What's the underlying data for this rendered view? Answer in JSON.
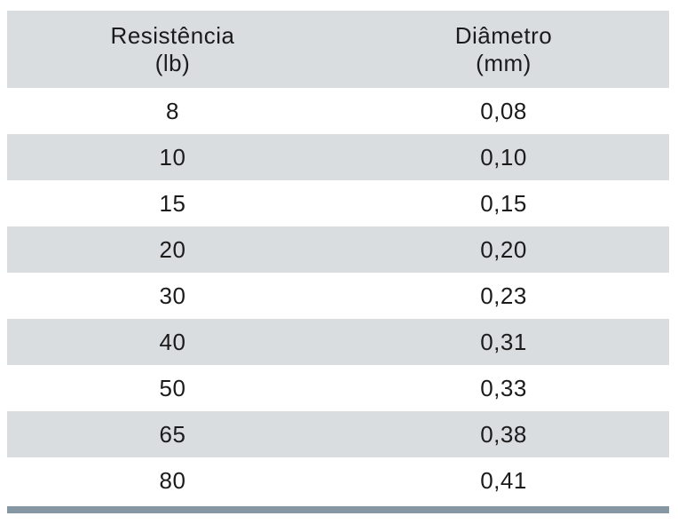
{
  "colors": {
    "stripe_bg": "#d9dde0",
    "header_bg": "#d9dde0",
    "bottom_bar": "#8597a3",
    "text": "#1b1b1b",
    "page_bg": "#ffffff"
  },
  "chart_data": {
    "type": "table",
    "title": "",
    "columns": [
      {
        "label": "Resistência",
        "unit": "(lb)"
      },
      {
        "label": "Diâmetro",
        "unit": "(mm)"
      }
    ],
    "rows": [
      [
        "8",
        "0,08"
      ],
      [
        "10",
        "0,10"
      ],
      [
        "15",
        "0,15"
      ],
      [
        "20",
        "0,20"
      ],
      [
        "30",
        "0,23"
      ],
      [
        "40",
        "0,31"
      ],
      [
        "50",
        "0,33"
      ],
      [
        "65",
        "0,38"
      ],
      [
        "80",
        "0,41"
      ]
    ],
    "layout": {
      "zebra_striping": true,
      "striped_rows": "even (2nd, 4th, 6th, 8th)",
      "text_alignment": "center",
      "bottom_rule": true
    }
  }
}
